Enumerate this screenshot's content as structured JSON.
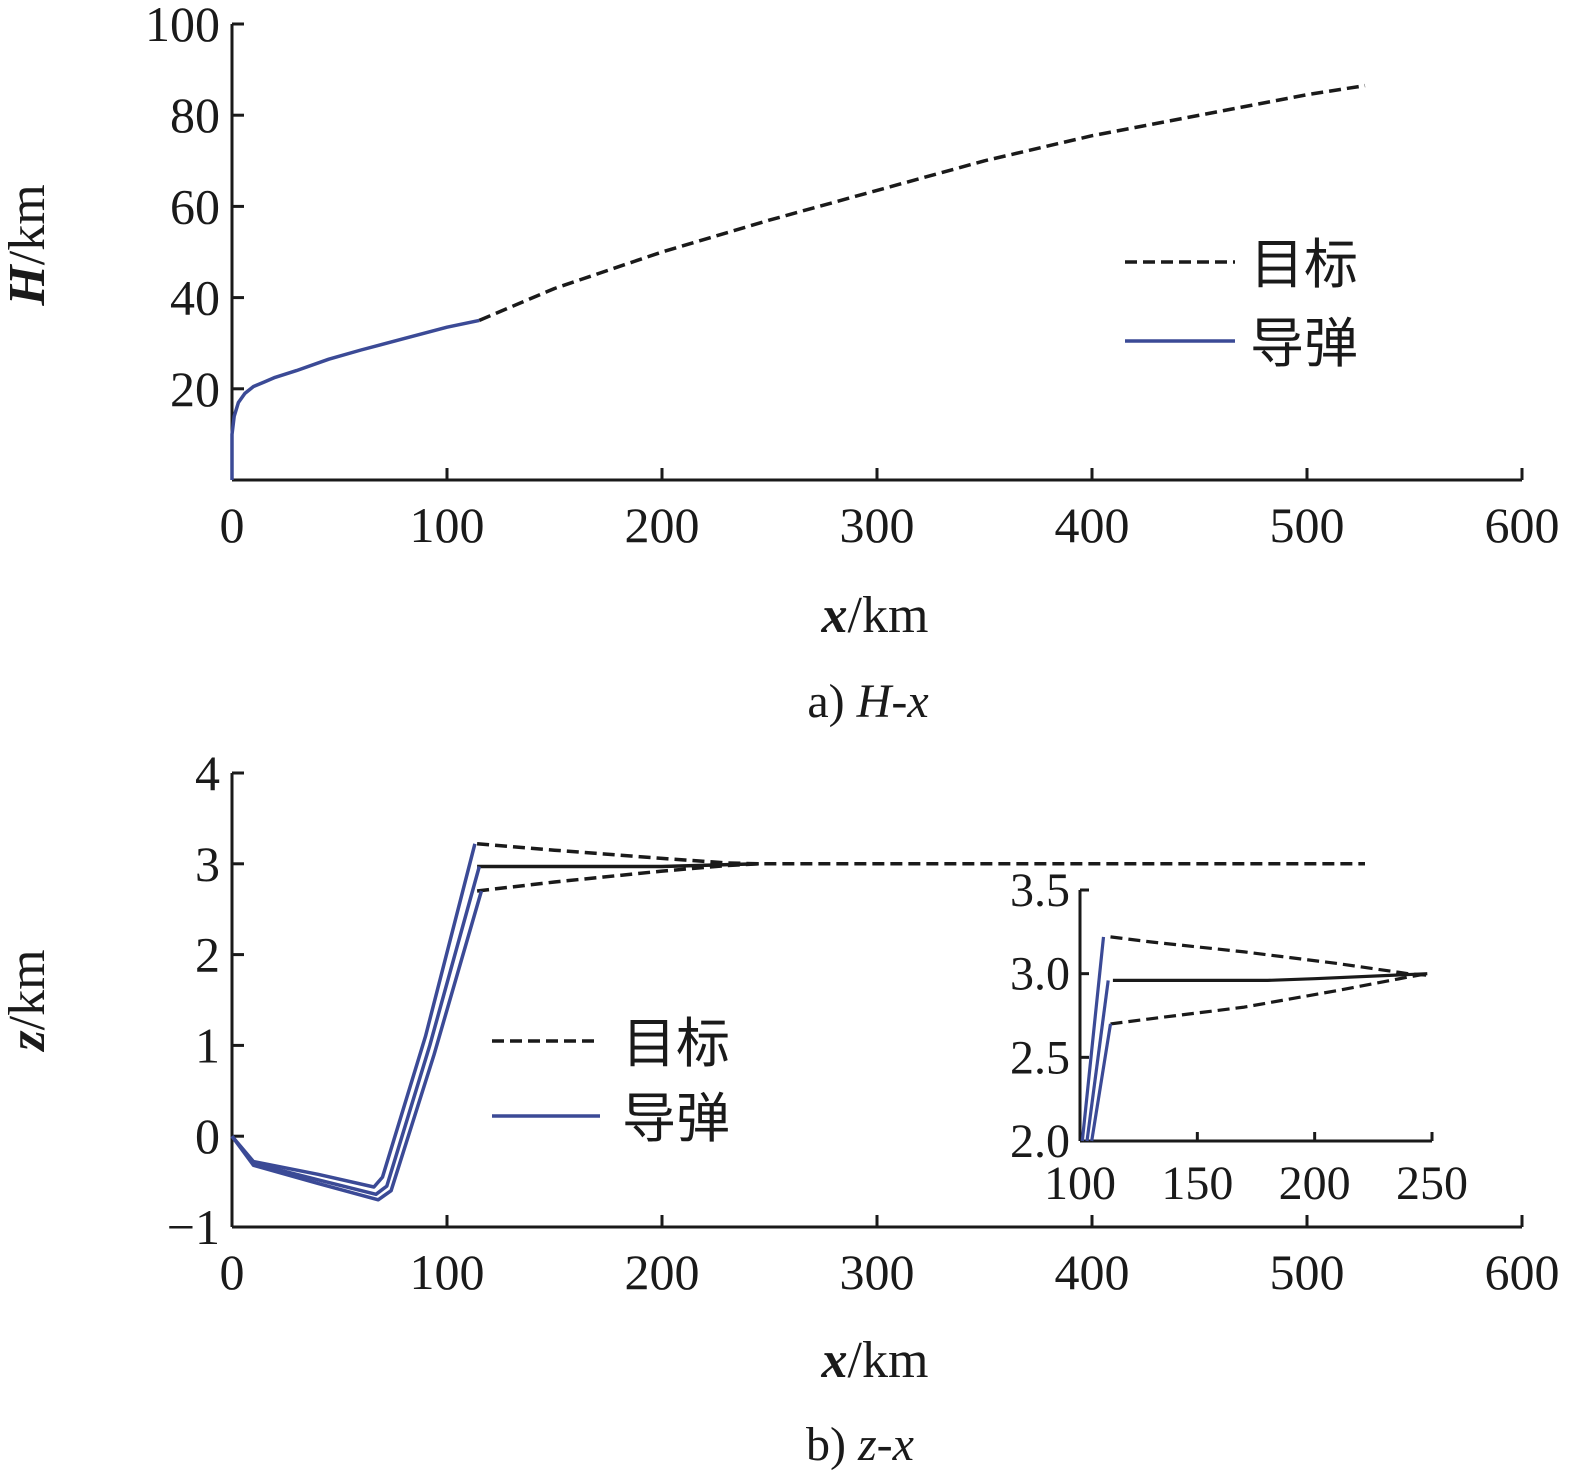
{
  "chart_data": [
    {
      "type": "line",
      "caption_prefix": "a) ",
      "caption_var": "H-x",
      "xlabel_var": "x",
      "xlabel_unit": "/km",
      "ylabel_var": "H",
      "ylabel_unit": "/km",
      "xlim": [
        0,
        600
      ],
      "ylim": [
        0,
        100
      ],
      "xticks": [
        0,
        100,
        200,
        300,
        400,
        500,
        600
      ],
      "yticks": [
        20,
        40,
        60,
        80,
        100
      ],
      "xtick_labels": [
        "0",
        "100",
        "200",
        "300",
        "400",
        "500",
        "600"
      ],
      "ytick_labels": [
        "20",
        "40",
        "60",
        "80",
        "100"
      ],
      "grid": false,
      "legend_position": "right-middle",
      "series": [
        {
          "name": "目标",
          "style": "dashed",
          "color": "#1a1a1a",
          "x": [
            115,
            130,
            150,
            175,
            200,
            250,
            300,
            350,
            400,
            450,
            500,
            527
          ],
          "y": [
            35,
            38,
            42,
            46,
            50,
            57,
            63.5,
            70,
            75.5,
            80,
            84.5,
            86.5
          ]
        },
        {
          "name": "导弹",
          "style": "solid",
          "color": "#3b4a96",
          "x": [
            0,
            0,
            1,
            3,
            6,
            10,
            15,
            20,
            30,
            45,
            60,
            80,
            100,
            115
          ],
          "y": [
            0,
            10,
            14,
            17,
            19,
            20.5,
            21.5,
            22.5,
            24,
            26.5,
            28.5,
            31,
            33.5,
            35
          ]
        }
      ]
    },
    {
      "type": "line",
      "caption_prefix": "b) ",
      "caption_var": "z-x",
      "xlabel_var": "x",
      "xlabel_unit": "/km",
      "ylabel_var": "z",
      "ylabel_unit": "/km",
      "xlim": [
        0,
        600
      ],
      "ylim": [
        -1,
        4
      ],
      "xticks": [
        0,
        100,
        200,
        300,
        400,
        500,
        600
      ],
      "yticks": [
        -1,
        0,
        1,
        2,
        3,
        4
      ],
      "xtick_labels": [
        "0",
        "100",
        "200",
        "300",
        "400",
        "500",
        "600"
      ],
      "ytick_labels": [
        "−1",
        "0",
        "1",
        "2",
        "3",
        "4"
      ],
      "grid": false,
      "legend_position": "center",
      "series": [
        {
          "name": "目标",
          "style": "dashed",
          "color": "#1a1a1a",
          "x": [
            114,
            150,
            200,
            230,
            245,
            300,
            400,
            527
          ],
          "y": [
            3.22,
            3.15,
            3.06,
            3.01,
            3.0,
            3.0,
            3.0,
            3.0
          ]
        },
        {
          "name": "",
          "style": "dashed",
          "color": "#1a1a1a",
          "x": [
            114,
            150,
            200,
            230,
            245
          ],
          "y": [
            2.7,
            2.8,
            2.92,
            2.98,
            3.0
          ]
        },
        {
          "name": "",
          "style": "solid",
          "color": "#1a1a1a",
          "x": [
            114,
            200,
            245
          ],
          "y": [
            2.97,
            2.97,
            3.0
          ]
        },
        {
          "name": "导弹",
          "style": "solid",
          "color": "#3b4a96",
          "x": [
            0,
            10,
            40,
            66,
            70,
            90,
            113
          ],
          "y": [
            0,
            -0.28,
            -0.42,
            -0.56,
            -0.45,
            1.1,
            3.22
          ]
        },
        {
          "name": "",
          "style": "solid",
          "color": "#3b4a96",
          "x": [
            0,
            10,
            40,
            67,
            72,
            92,
            115
          ],
          "y": [
            0,
            -0.3,
            -0.48,
            -0.64,
            -0.55,
            1.0,
            2.97
          ]
        },
        {
          "name": "",
          "style": "solid",
          "color": "#3b4a96",
          "x": [
            0,
            10,
            40,
            68,
            74,
            94,
            116
          ],
          "y": [
            0,
            -0.32,
            -0.52,
            -0.7,
            -0.6,
            0.9,
            2.7
          ]
        }
      ],
      "inset": {
        "xlim": [
          100,
          250
        ],
        "ylim": [
          2.0,
          3.5
        ],
        "xticks": [
          100,
          150,
          200,
          250
        ],
        "yticks": [
          2.0,
          2.5,
          3.0,
          3.5
        ],
        "xtick_labels": [
          "100",
          "150",
          "200",
          "250"
        ],
        "ytick_labels": [
          "2.0",
          "2.5",
          "3.0",
          "3.5"
        ],
        "series": [
          {
            "style": "dashed",
            "color": "#1a1a1a",
            "x": [
              113,
              130,
              170,
              210,
              240,
              248
            ],
            "y": [
              3.22,
              3.19,
              3.13,
              3.06,
              3.0,
              2.99
            ]
          },
          {
            "style": "dashed",
            "color": "#1a1a1a",
            "x": [
              113,
              130,
              170,
              210,
              240,
              248
            ],
            "y": [
              2.7,
              2.73,
              2.8,
              2.9,
              2.98,
              3.0
            ]
          },
          {
            "style": "solid",
            "color": "#1a1a1a",
            "x": [
              114,
              180,
              200,
              248
            ],
            "y": [
              2.96,
              2.96,
              2.97,
              3.0
            ]
          },
          {
            "style": "solid",
            "color": "#3b4a96",
            "x": [
              101,
              110
            ],
            "y": [
              2.0,
              3.22
            ]
          },
          {
            "style": "solid",
            "color": "#3b4a96",
            "x": [
              103,
              112
            ],
            "y": [
              2.0,
              2.96
            ]
          },
          {
            "style": "solid",
            "color": "#3b4a96",
            "x": [
              105,
              113
            ],
            "y": [
              2.0,
              2.7
            ]
          }
        ]
      }
    }
  ]
}
